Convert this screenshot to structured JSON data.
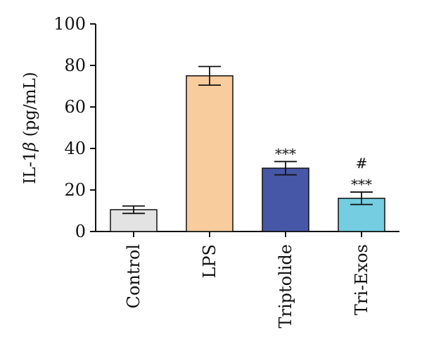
{
  "chart_data": {
    "type": "bar",
    "categories": [
      "Control",
      "LPS",
      "Triptolide",
      "Tri-Exos"
    ],
    "values": [
      10.5,
      75,
      30.5,
      16
    ],
    "errors": [
      1.8,
      4.5,
      3.2,
      3.0
    ],
    "colors": [
      "#e3e3e3",
      "#f9cc9d",
      "#4757a7",
      "#74cde0"
    ],
    "significance": [
      [],
      [],
      [
        "***"
      ],
      [
        "#",
        "***"
      ]
    ],
    "ylabel_prefix": "IL-1",
    "ylabel_greek": "β",
    "ylabel_suffix": " (pg/mL)",
    "ylim": [
      0,
      100
    ],
    "yticks": [
      "0",
      "20",
      "40",
      "60",
      "80",
      "100"
    ],
    "grid": false
  }
}
